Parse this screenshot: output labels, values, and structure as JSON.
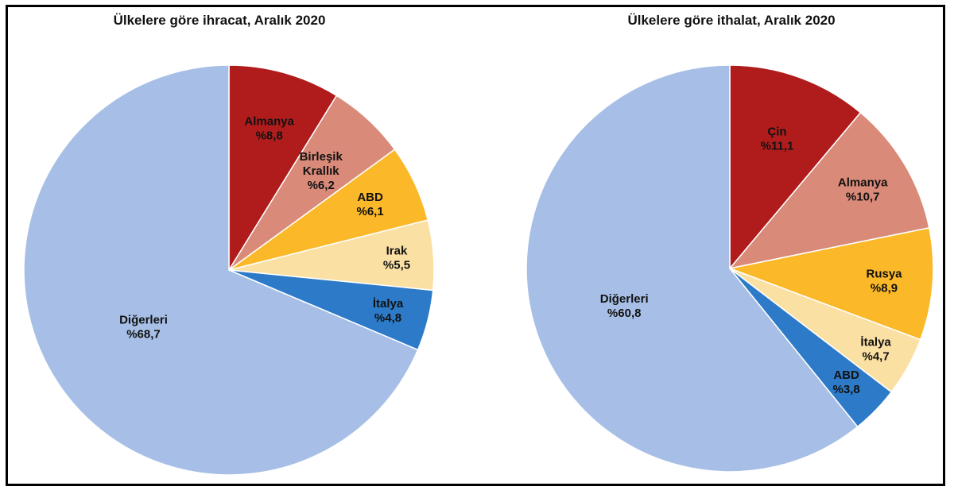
{
  "chart_data": [
    {
      "type": "pie",
      "title": "Ülkelere göre ihracat, Aralık 2020",
      "slices": [
        {
          "name": "Almanya",
          "label": [
            "Almanya"
          ],
          "value_text": "%8,8",
          "value": 8.8,
          "color": "#b01c1c"
        },
        {
          "name": "Birleşik Krallık",
          "label": [
            "Birleşik",
            "Krallık"
          ],
          "value_text": "%6,2",
          "value": 6.2,
          "color": "#d98a78"
        },
        {
          "name": "ABD",
          "label": [
            "ABD"
          ],
          "value_text": "%6,1",
          "value": 6.1,
          "color": "#fbb828"
        },
        {
          "name": "Irak",
          "label": [
            "Irak"
          ],
          "value_text": "%5,5",
          "value": 5.5,
          "color": "#fbe0a4"
        },
        {
          "name": "İtalya",
          "label": [
            "İtalya"
          ],
          "value_text": "%4,8",
          "value": 4.8,
          "color": "#2d7bc8"
        },
        {
          "name": "Diğerleri",
          "label": [
            "Diğerleri"
          ],
          "value_text": "%68,7",
          "value": 68.7,
          "color": "#a7bfe6"
        }
      ]
    },
    {
      "type": "pie",
      "title": "Ülkelere göre ithalat, Aralık 2020",
      "slices": [
        {
          "name": "Çin",
          "label": [
            "Çin"
          ],
          "value_text": "%11,1",
          "value": 11.1,
          "color": "#b01c1c"
        },
        {
          "name": "Almanya",
          "label": [
            "Almanya"
          ],
          "value_text": "%10,7",
          "value": 10.7,
          "color": "#d98a78"
        },
        {
          "name": "Rusya",
          "label": [
            "Rusya"
          ],
          "value_text": "%8,9",
          "value": 8.9,
          "color": "#fbb828"
        },
        {
          "name": "İtalya",
          "label": [
            "İtalya"
          ],
          "value_text": "%4,7",
          "value": 4.7,
          "color": "#fbe0a4"
        },
        {
          "name": "ABD",
          "label": [
            "ABD"
          ],
          "value_text": "%3,8",
          "value": 3.8,
          "color": "#2d7bc8"
        },
        {
          "name": "Diğerleri",
          "label": [
            "Diğerleri"
          ],
          "value_text": "%60,8",
          "value": 60.8,
          "color": "#a7bfe6"
        }
      ]
    }
  ]
}
